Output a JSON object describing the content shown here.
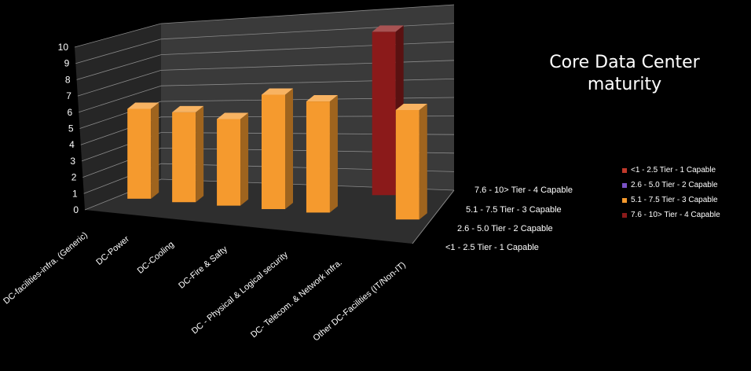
{
  "chart_data": {
    "type": "bar",
    "title": "Core Data Center\nmaturity",
    "title_lines": [
      "Core Data Center",
      "maturity"
    ],
    "categories": [
      "DC-facilities-infra. (Generic)",
      "DC-Power",
      "DC-Cooling",
      "DC-Fire & Safty",
      "DC - Physical & Logical security",
      "DC- Telecom. & Network infra.",
      "Other DC-Facilities (IT/Non-IT)"
    ],
    "series": [
      {
        "name": "",
        "values": [
          5.5,
          5.5,
          5.3,
          7.0,
          6.8,
          10.0,
          6.7
        ],
        "colors": [
          "#f59a2e",
          "#f59a2e",
          "#f59a2e",
          "#f59a2e",
          "#f59a2e",
          "#8b1a1a",
          "#f59a2e"
        ]
      }
    ],
    "ylim": [
      0,
      10
    ],
    "yticks": [
      "0",
      "1",
      "2",
      "3",
      "4",
      "5",
      "6",
      "7",
      "8",
      "9",
      "10"
    ],
    "depth_labels": [
      "7.6 - 10> Tier - 4 Capable",
      "5.1 - 7.5 Tier - 3 Capable",
      "2.6 - 5.0 Tier - 2 Capable",
      "<1 - 2.5 Tier - 1 Capable"
    ],
    "legend": [
      {
        "label": "<1 - 2.5 Tier - 1 Capable",
        "color": "#c0392b"
      },
      {
        "label": "2.6 - 5.0 Tier - 2 Capable",
        "color": "#7b52c7"
      },
      {
        "label": "5.1 - 7.5 Tier - 3 Capable",
        "color": "#f59a2e"
      },
      {
        "label": "7.6 - 10> Tier - 4 Capable",
        "color": "#8b1a1a"
      }
    ],
    "legend_position": "right",
    "grid": true,
    "colors": {
      "background": "#000000",
      "back_wall": "#3a3a3a",
      "floor": "#2e2e2e",
      "gridline": "#8a8a8a",
      "orange": "#f59a2e",
      "dark_red": "#8b1a1a"
    }
  }
}
